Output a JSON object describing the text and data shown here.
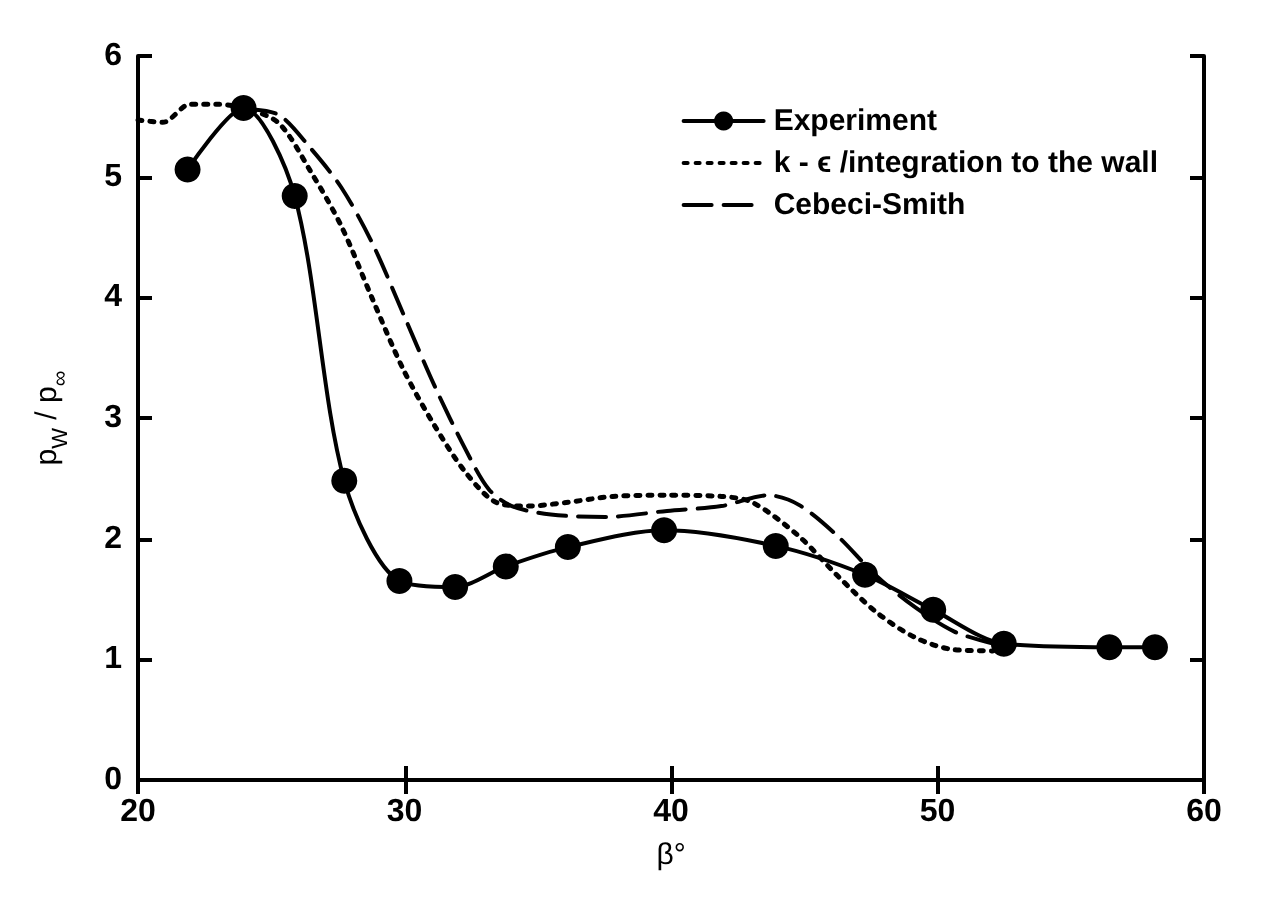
{
  "chart_data": {
    "type": "line",
    "xlabel": "β°",
    "ylabel": "p$_{W}$ / p$_{∞}$",
    "xlim": [
      20,
      60
    ],
    "xticks": [
      20,
      30,
      40,
      50,
      60
    ],
    "ylim": [
      0,
      6
    ],
    "yticks": [
      0,
      1,
      2,
      3,
      4,
      5,
      6
    ],
    "grid": false,
    "legend": "top right",
    "series": [
      {
        "name": "Experiment",
        "color": "#000000",
        "marker": "circle",
        "line_style": "solid",
        "x": [
          21.86,
          23.96,
          25.88,
          27.74,
          29.81,
          31.9,
          33.8,
          36.13,
          39.74,
          43.93,
          47.28,
          49.84,
          52.49,
          56.45,
          58.16
        ],
        "values": [
          5.06,
          5.57,
          4.84,
          2.48,
          1.65,
          1.6,
          1.77,
          1.93,
          2.07,
          1.94,
          1.7,
          1.41,
          1.13,
          1.1,
          1.1
        ]
      },
      {
        "name": "k - ϵ /integration to the wall",
        "color": "#000000",
        "marker": "none",
        "line_style": "dotted",
        "x": [
          20,
          20.93,
          21.95,
          22.97,
          24.13,
          25.3,
          26.46,
          27.63,
          28.79,
          29.96,
          31.12,
          32.29,
          33.45,
          34.61,
          36.07,
          37.82,
          39.85,
          41.89,
          43.06,
          44.8,
          46.26,
          47.71,
          49.17,
          50.63,
          52.08
        ],
        "values": [
          5.47,
          5.45,
          5.6,
          5.6,
          5.56,
          5.44,
          5.05,
          4.59,
          3.99,
          3.4,
          2.94,
          2.55,
          2.3,
          2.27,
          2.3,
          2.35,
          2.36,
          2.35,
          2.3,
          2.02,
          1.69,
          1.39,
          1.18,
          1.08,
          1.07
        ]
      },
      {
        "name": "Cebeci-Smith",
        "color": "#000000",
        "marker": "none",
        "line_style": "dashed",
        "x": [
          24.13,
          25.3,
          26.46,
          27.63,
          28.79,
          29.96,
          31.12,
          32.29,
          33.16,
          34.03,
          35.49,
          37.53,
          39.85,
          41.89,
          43.64,
          44.8,
          46.26,
          47.71,
          49.17,
          50.63,
          52.08
        ],
        "values": [
          5.56,
          5.51,
          5.24,
          4.91,
          4.45,
          3.86,
          3.27,
          2.74,
          2.41,
          2.27,
          2.2,
          2.18,
          2.23,
          2.27,
          2.36,
          2.28,
          2.02,
          1.69,
          1.43,
          1.23,
          1.13
        ]
      }
    ]
  }
}
